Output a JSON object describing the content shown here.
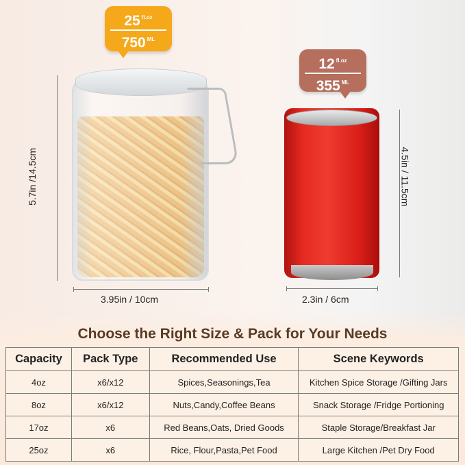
{
  "jar_badge": {
    "volume_oz": "25",
    "unit_oz": "fl.oz",
    "volume_ml": "750",
    "unit_ml": "ML",
    "color": "#f5a81a"
  },
  "can_badge": {
    "volume_oz": "12",
    "unit_oz": "fl.oz",
    "volume_ml": "355",
    "unit_ml": "ML",
    "color": "#b66e5d"
  },
  "jar_dims": {
    "width": "3.95in / 10cm",
    "height": "5.7in /14.5cm"
  },
  "can_dims": {
    "width": "2.3in / 6cm",
    "height": "4.5in / 11.5cm"
  },
  "title": "Choose the Right Size & Pack for Your Needs",
  "table": {
    "headers": [
      "Capacity",
      "Pack Type",
      "Recommended Use",
      "Scene Keywords"
    ],
    "rows": [
      [
        "4oz",
        "x6/x12",
        "Spices,Seasonings,Tea",
        "Kitchen Spice Storage /Gifting Jars"
      ],
      [
        "8oz",
        "x6/x12",
        "Nuts,Candy,Coffee Beans",
        "Snack Storage /Fridge Portioning"
      ],
      [
        "17oz",
        "x6",
        "Red Beans,Oats, Dried Goods",
        "Staple Storage/Breakfast Jar"
      ],
      [
        "25oz",
        "x6",
        "Rice, Flour,Pasta,Pet Food",
        "Large Kitchen /Pet Dry Food"
      ]
    ]
  }
}
